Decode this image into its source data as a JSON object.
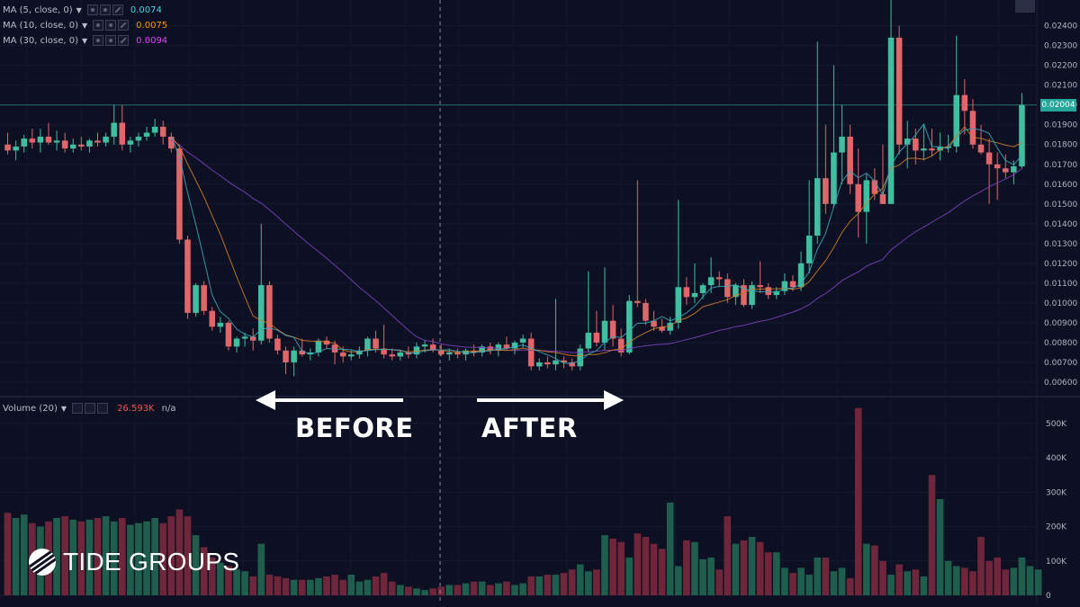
{
  "legend": {
    "ma5": {
      "label": "MA (5, close, 0)",
      "value": "0.0074",
      "color": "#4dd0e1"
    },
    "ma10": {
      "label": "MA (10, close, 0)",
      "value": "0.0075",
      "color": "#ff9800"
    },
    "ma30": {
      "label": "MA (30, close, 0)",
      "value": "0.0094",
      "color": "#e040fb"
    }
  },
  "volume_legend": {
    "label": "Volume (20)",
    "value": "26.593K",
    "extra": "n/a"
  },
  "annotations": {
    "before": "BEFORE",
    "after": "AFTER"
  },
  "logo": {
    "text": "TIDE GROUPS"
  },
  "last_price_label": "0.02004",
  "colors": {
    "up": "#3fbfa0",
    "down": "#e0666a",
    "vol_up": "#1f5e4c",
    "vol_down": "#70263a",
    "background": "#0c1022",
    "ma30_line": "#7b3fbf"
  },
  "chart_data": [
    {
      "type": "candlestick",
      "title": "",
      "ylim": [
        0.0055,
        0.0253
      ],
      "yticks": [
        "0.00600",
        "0.00700",
        "0.00800",
        "0.00900",
        "0.01000",
        "0.01100",
        "0.01200",
        "0.01300",
        "0.01400",
        "0.01500",
        "0.01600",
        "0.01700",
        "0.01800",
        "0.01900",
        "0.02000",
        "0.02100",
        "0.02200",
        "0.02300",
        "0.02400"
      ],
      "candles": [
        {
          "o": 0.018,
          "h": 0.0186,
          "l": 0.0175,
          "c": 0.0177
        },
        {
          "o": 0.0177,
          "h": 0.0182,
          "l": 0.0172,
          "c": 0.0179
        },
        {
          "o": 0.0179,
          "h": 0.0185,
          "l": 0.0176,
          "c": 0.0183
        },
        {
          "o": 0.0183,
          "h": 0.0188,
          "l": 0.0178,
          "c": 0.0181
        },
        {
          "o": 0.0181,
          "h": 0.0188,
          "l": 0.0176,
          "c": 0.0184
        },
        {
          "o": 0.0184,
          "h": 0.0191,
          "l": 0.018,
          "c": 0.0181
        },
        {
          "o": 0.0181,
          "h": 0.0187,
          "l": 0.0177,
          "c": 0.0182
        },
        {
          "o": 0.0182,
          "h": 0.0186,
          "l": 0.0176,
          "c": 0.0178
        },
        {
          "o": 0.0178,
          "h": 0.0183,
          "l": 0.0176,
          "c": 0.018
        },
        {
          "o": 0.018,
          "h": 0.0184,
          "l": 0.0177,
          "c": 0.0179
        },
        {
          "o": 0.0179,
          "h": 0.0183,
          "l": 0.0176,
          "c": 0.0182
        },
        {
          "o": 0.0182,
          "h": 0.0186,
          "l": 0.0179,
          "c": 0.0181
        },
        {
          "o": 0.0181,
          "h": 0.0186,
          "l": 0.0179,
          "c": 0.0184
        },
        {
          "o": 0.0184,
          "h": 0.02,
          "l": 0.018,
          "c": 0.0191
        },
        {
          "o": 0.0191,
          "h": 0.02,
          "l": 0.0177,
          "c": 0.018
        },
        {
          "o": 0.018,
          "h": 0.0184,
          "l": 0.0176,
          "c": 0.0182
        },
        {
          "o": 0.0182,
          "h": 0.0186,
          "l": 0.0179,
          "c": 0.0184
        },
        {
          "o": 0.0184,
          "h": 0.0189,
          "l": 0.0182,
          "c": 0.0186
        },
        {
          "o": 0.0186,
          "h": 0.0193,
          "l": 0.0184,
          "c": 0.0189
        },
        {
          "o": 0.0189,
          "h": 0.0192,
          "l": 0.018,
          "c": 0.0184
        },
        {
          "o": 0.0184,
          "h": 0.0186,
          "l": 0.0176,
          "c": 0.0178
        },
        {
          "o": 0.0178,
          "h": 0.018,
          "l": 0.013,
          "c": 0.0132
        },
        {
          "o": 0.0132,
          "h": 0.0134,
          "l": 0.0092,
          "c": 0.0095
        },
        {
          "o": 0.0095,
          "h": 0.011,
          "l": 0.0093,
          "c": 0.0109
        },
        {
          "o": 0.0109,
          "h": 0.0111,
          "l": 0.0094,
          "c": 0.0096
        },
        {
          "o": 0.0096,
          "h": 0.0098,
          "l": 0.0086,
          "c": 0.0088
        },
        {
          "o": 0.0088,
          "h": 0.0093,
          "l": 0.0085,
          "c": 0.009
        },
        {
          "o": 0.009,
          "h": 0.0091,
          "l": 0.0076,
          "c": 0.0078
        },
        {
          "o": 0.0078,
          "h": 0.0083,
          "l": 0.0075,
          "c": 0.0082
        },
        {
          "o": 0.0082,
          "h": 0.0085,
          "l": 0.0078,
          "c": 0.0083
        },
        {
          "o": 0.0083,
          "h": 0.0087,
          "l": 0.0076,
          "c": 0.0081
        },
        {
          "o": 0.0081,
          "h": 0.014,
          "l": 0.0079,
          "c": 0.0109
        },
        {
          "o": 0.0109,
          "h": 0.0111,
          "l": 0.008,
          "c": 0.0082
        },
        {
          "o": 0.0082,
          "h": 0.0084,
          "l": 0.0074,
          "c": 0.0076
        },
        {
          "o": 0.0076,
          "h": 0.0078,
          "l": 0.0064,
          "c": 0.007
        },
        {
          "o": 0.007,
          "h": 0.0078,
          "l": 0.0063,
          "c": 0.0076
        },
        {
          "o": 0.0076,
          "h": 0.0082,
          "l": 0.0073,
          "c": 0.0074
        },
        {
          "o": 0.0074,
          "h": 0.0077,
          "l": 0.0071,
          "c": 0.0075
        },
        {
          "o": 0.0075,
          "h": 0.0082,
          "l": 0.0073,
          "c": 0.0081
        },
        {
          "o": 0.0081,
          "h": 0.0083,
          "l": 0.0077,
          "c": 0.0079
        },
        {
          "o": 0.0079,
          "h": 0.0081,
          "l": 0.0069,
          "c": 0.0075
        },
        {
          "o": 0.0075,
          "h": 0.0078,
          "l": 0.007,
          "c": 0.0073
        },
        {
          "o": 0.0073,
          "h": 0.0076,
          "l": 0.0071,
          "c": 0.0074
        },
        {
          "o": 0.0074,
          "h": 0.0078,
          "l": 0.0072,
          "c": 0.0076
        },
        {
          "o": 0.0076,
          "h": 0.0083,
          "l": 0.0073,
          "c": 0.0082
        },
        {
          "o": 0.0082,
          "h": 0.0086,
          "l": 0.0075,
          "c": 0.0077
        },
        {
          "o": 0.0077,
          "h": 0.0089,
          "l": 0.0072,
          "c": 0.0074
        },
        {
          "o": 0.0074,
          "h": 0.0077,
          "l": 0.0071,
          "c": 0.0073
        },
        {
          "o": 0.0073,
          "h": 0.0076,
          "l": 0.0071,
          "c": 0.0075
        },
        {
          "o": 0.0075,
          "h": 0.0078,
          "l": 0.0072,
          "c": 0.0074
        },
        {
          "o": 0.0074,
          "h": 0.008,
          "l": 0.0072,
          "c": 0.0078
        },
        {
          "o": 0.0078,
          "h": 0.0081,
          "l": 0.0075,
          "c": 0.0079
        },
        {
          "o": 0.0079,
          "h": 0.0082,
          "l": 0.0075,
          "c": 0.0076
        },
        {
          "o": 0.0076,
          "h": 0.0079,
          "l": 0.0073,
          "c": 0.0074
        },
        {
          "o": 0.0074,
          "h": 0.0077,
          "l": 0.0071,
          "c": 0.0075
        },
        {
          "o": 0.0075,
          "h": 0.0077,
          "l": 0.0072,
          "c": 0.0074
        },
        {
          "o": 0.0074,
          "h": 0.0077,
          "l": 0.0071,
          "c": 0.0076
        },
        {
          "o": 0.0076,
          "h": 0.0079,
          "l": 0.0073,
          "c": 0.0075
        },
        {
          "o": 0.0075,
          "h": 0.0079,
          "l": 0.0073,
          "c": 0.0078
        },
        {
          "o": 0.0078,
          "h": 0.008,
          "l": 0.0074,
          "c": 0.0076
        },
        {
          "o": 0.0076,
          "h": 0.008,
          "l": 0.0073,
          "c": 0.0079
        },
        {
          "o": 0.0079,
          "h": 0.0083,
          "l": 0.0076,
          "c": 0.0077
        },
        {
          "o": 0.0077,
          "h": 0.0081,
          "l": 0.0074,
          "c": 0.008
        },
        {
          "o": 0.008,
          "h": 0.0084,
          "l": 0.0077,
          "c": 0.0082
        },
        {
          "o": 0.0082,
          "h": 0.0085,
          "l": 0.0066,
          "c": 0.0068
        },
        {
          "o": 0.0068,
          "h": 0.0072,
          "l": 0.0066,
          "c": 0.007
        },
        {
          "o": 0.007,
          "h": 0.0073,
          "l": 0.0067,
          "c": 0.0069
        },
        {
          "o": 0.0069,
          "h": 0.0102,
          "l": 0.0066,
          "c": 0.0071
        },
        {
          "o": 0.0071,
          "h": 0.0073,
          "l": 0.0067,
          "c": 0.007
        },
        {
          "o": 0.007,
          "h": 0.0072,
          "l": 0.0066,
          "c": 0.0068
        },
        {
          "o": 0.0068,
          "h": 0.0079,
          "l": 0.0066,
          "c": 0.0077
        },
        {
          "o": 0.0077,
          "h": 0.0116,
          "l": 0.0075,
          "c": 0.0085
        },
        {
          "o": 0.0085,
          "h": 0.0096,
          "l": 0.0078,
          "c": 0.008
        },
        {
          "o": 0.008,
          "h": 0.0118,
          "l": 0.0076,
          "c": 0.0091
        },
        {
          "o": 0.0091,
          "h": 0.0099,
          "l": 0.0078,
          "c": 0.0082
        },
        {
          "o": 0.0082,
          "h": 0.0087,
          "l": 0.0073,
          "c": 0.0075
        },
        {
          "o": 0.0075,
          "h": 0.0104,
          "l": 0.0074,
          "c": 0.0101
        },
        {
          "o": 0.0101,
          "h": 0.0162,
          "l": 0.0098,
          "c": 0.01
        },
        {
          "o": 0.01,
          "h": 0.0102,
          "l": 0.0089,
          "c": 0.0091
        },
        {
          "o": 0.0091,
          "h": 0.0096,
          "l": 0.0086,
          "c": 0.0088
        },
        {
          "o": 0.0088,
          "h": 0.0092,
          "l": 0.0085,
          "c": 0.0086
        },
        {
          "o": 0.0086,
          "h": 0.0093,
          "l": 0.0084,
          "c": 0.009
        },
        {
          "o": 0.009,
          "h": 0.0152,
          "l": 0.0087,
          "c": 0.0108
        },
        {
          "o": 0.0108,
          "h": 0.0113,
          "l": 0.0099,
          "c": 0.0103
        },
        {
          "o": 0.0103,
          "h": 0.012,
          "l": 0.01,
          "c": 0.0105
        },
        {
          "o": 0.0105,
          "h": 0.011,
          "l": 0.0102,
          "c": 0.0109
        },
        {
          "o": 0.0109,
          "h": 0.0123,
          "l": 0.0105,
          "c": 0.0113
        },
        {
          "o": 0.0113,
          "h": 0.0116,
          "l": 0.0108,
          "c": 0.0112
        },
        {
          "o": 0.0112,
          "h": 0.0115,
          "l": 0.01,
          "c": 0.0103
        },
        {
          "o": 0.0103,
          "h": 0.011,
          "l": 0.0099,
          "c": 0.0109
        },
        {
          "o": 0.0109,
          "h": 0.0112,
          "l": 0.0098,
          "c": 0.0099
        },
        {
          "o": 0.0099,
          "h": 0.0111,
          "l": 0.0097,
          "c": 0.0109
        },
        {
          "o": 0.0109,
          "h": 0.0121,
          "l": 0.0105,
          "c": 0.0108
        },
        {
          "o": 0.0108,
          "h": 0.011,
          "l": 0.0102,
          "c": 0.0104
        },
        {
          "o": 0.0104,
          "h": 0.0108,
          "l": 0.0102,
          "c": 0.0106
        },
        {
          "o": 0.0106,
          "h": 0.0115,
          "l": 0.0104,
          "c": 0.0111
        },
        {
          "o": 0.0111,
          "h": 0.0114,
          "l": 0.0106,
          "c": 0.0108
        },
        {
          "o": 0.0108,
          "h": 0.0126,
          "l": 0.0106,
          "c": 0.012
        },
        {
          "o": 0.012,
          "h": 0.0162,
          "l": 0.0115,
          "c": 0.0134
        },
        {
          "o": 0.0134,
          "h": 0.0232,
          "l": 0.013,
          "c": 0.0163
        },
        {
          "o": 0.0163,
          "h": 0.019,
          "l": 0.0145,
          "c": 0.015
        },
        {
          "o": 0.015,
          "h": 0.022,
          "l": 0.0148,
          "c": 0.0176
        },
        {
          "o": 0.0176,
          "h": 0.02,
          "l": 0.016,
          "c": 0.0184
        },
        {
          "o": 0.0184,
          "h": 0.019,
          "l": 0.0155,
          "c": 0.016
        },
        {
          "o": 0.016,
          "h": 0.0178,
          "l": 0.0133,
          "c": 0.0146
        },
        {
          "o": 0.0146,
          "h": 0.0165,
          "l": 0.013,
          "c": 0.0162
        },
        {
          "o": 0.0162,
          "h": 0.0168,
          "l": 0.0152,
          "c": 0.0155
        },
        {
          "o": 0.0155,
          "h": 0.018,
          "l": 0.015,
          "c": 0.015
        },
        {
          "o": 0.015,
          "h": 0.0253,
          "l": 0.015,
          "c": 0.0234
        },
        {
          "o": 0.0234,
          "h": 0.024,
          "l": 0.0175,
          "c": 0.018
        },
        {
          "o": 0.018,
          "h": 0.0192,
          "l": 0.0168,
          "c": 0.0183
        },
        {
          "o": 0.0183,
          "h": 0.0188,
          "l": 0.017,
          "c": 0.0177
        },
        {
          "o": 0.0177,
          "h": 0.019,
          "l": 0.0172,
          "c": 0.0178
        },
        {
          "o": 0.0178,
          "h": 0.0188,
          "l": 0.0174,
          "c": 0.0177
        },
        {
          "o": 0.0177,
          "h": 0.0186,
          "l": 0.0172,
          "c": 0.0179
        },
        {
          "o": 0.0179,
          "h": 0.0185,
          "l": 0.0176,
          "c": 0.0179
        },
        {
          "o": 0.0179,
          "h": 0.0235,
          "l": 0.0176,
          "c": 0.0205
        },
        {
          "o": 0.0205,
          "h": 0.0213,
          "l": 0.0185,
          "c": 0.0197
        },
        {
          "o": 0.0197,
          "h": 0.0203,
          "l": 0.0178,
          "c": 0.018
        },
        {
          "o": 0.018,
          "h": 0.019,
          "l": 0.0175,
          "c": 0.0176
        },
        {
          "o": 0.0176,
          "h": 0.0183,
          "l": 0.015,
          "c": 0.017
        },
        {
          "o": 0.017,
          "h": 0.0176,
          "l": 0.0152,
          "c": 0.0168
        },
        {
          "o": 0.0168,
          "h": 0.0175,
          "l": 0.0163,
          "c": 0.0166
        },
        {
          "o": 0.0166,
          "h": 0.0172,
          "l": 0.016,
          "c": 0.0169
        },
        {
          "o": 0.0169,
          "h": 0.0206,
          "l": 0.0168,
          "c": 0.02
        }
      ]
    },
    {
      "type": "bar",
      "title": "Volume (20)",
      "ylim": [
        0,
        560000
      ],
      "yticks": [
        "0",
        "100K",
        "200K",
        "300K",
        "400K",
        "500K"
      ],
      "values": [
        240000,
        225000,
        235000,
        210000,
        200000,
        215000,
        225000,
        230000,
        220000,
        215000,
        220000,
        225000,
        230000,
        215000,
        225000,
        205000,
        210000,
        215000,
        225000,
        210000,
        230000,
        250000,
        230000,
        175000,
        140000,
        110000,
        95000,
        85000,
        75000,
        70000,
        55000,
        150000,
        60000,
        55000,
        50000,
        45000,
        45000,
        45000,
        50000,
        55000,
        60000,
        45000,
        60000,
        40000,
        45000,
        55000,
        65000,
        40000,
        30000,
        25000,
        20000,
        15000,
        20000,
        25000,
        30000,
        30000,
        35000,
        40000,
        40000,
        30000,
        35000,
        40000,
        30000,
        35000,
        55000,
        55000,
        60000,
        60000,
        65000,
        75000,
        90000,
        70000,
        75000,
        175000,
        165000,
        155000,
        110000,
        180000,
        170000,
        150000,
        135000,
        270000,
        85000,
        160000,
        155000,
        105000,
        110000,
        75000,
        230000,
        150000,
        160000,
        170000,
        155000,
        125000,
        125000,
        80000,
        65000,
        80000,
        60000,
        110000,
        110000,
        70000,
        80000,
        50000,
        545000,
        150000,
        145000,
        100000,
        60000,
        90000,
        70000,
        75000,
        55000,
        350000,
        280000,
        100000,
        85000,
        80000,
        70000,
        170000,
        100000,
        110000,
        75000,
        80000,
        110000,
        85000,
        75000
      ]
    }
  ]
}
